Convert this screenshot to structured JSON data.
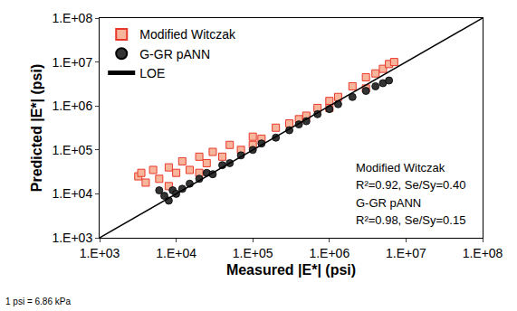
{
  "chart_data": {
    "type": "scatter",
    "xlabel": "Measured |E*| (psi)",
    "ylabel": "Predicted |E*| (psi)",
    "log": true,
    "grid": false,
    "legend": "top left",
    "xlim": [
      1000,
      100000000
    ],
    "ylim": [
      1000,
      100000000
    ],
    "xticks": [
      {
        "value": 1000,
        "label": "1.E+03"
      },
      {
        "value": 10000,
        "label": "1.E+04"
      },
      {
        "value": 100000,
        "label": "1.E+05"
      },
      {
        "value": 1000000,
        "label": "1.E+06"
      },
      {
        "value": 10000000,
        "label": "1.E+07"
      },
      {
        "value": 100000000,
        "label": "1.E+08"
      }
    ],
    "yticks": [
      {
        "value": 1000,
        "label": "1.E+03"
      },
      {
        "value": 10000,
        "label": "1.E+04"
      },
      {
        "value": 100000,
        "label": "1.E+05"
      },
      {
        "value": 1000000,
        "label": "1.E+06"
      },
      {
        "value": 10000000,
        "label": "1.E+07"
      },
      {
        "value": 100000000,
        "label": "1.E+08"
      }
    ],
    "annotations": [
      "Modified Witczak",
      "R²=0.92, Se/Sy=0.40",
      "G-GR pANN",
      "R²=0.98, Se/Sy=0.15"
    ],
    "footnote": "1 psi = 6.86 kPa",
    "series": [
      {
        "name": "Modified Witczak",
        "type": "scatter",
        "marker": "square",
        "color": "#e8382a",
        "x": [
          3200,
          3500,
          4000,
          5000,
          6000,
          8000,
          10000,
          12000,
          15000,
          20000,
          25000,
          30000,
          40000,
          50000,
          70000,
          100000,
          130000,
          200000,
          300000,
          400000,
          500000,
          700000,
          1000000,
          1300000,
          2000000,
          3000000,
          4000000,
          5000000,
          6000000,
          7000000,
          8000,
          20000,
          100000,
          1000000,
          3000000
        ],
        "values": [
          25000,
          30000,
          18000,
          35000,
          22000,
          40000,
          30000,
          55000,
          35000,
          70000,
          50000,
          90000,
          70000,
          130000,
          100000,
          200000,
          180000,
          320000,
          400000,
          500000,
          600000,
          900000,
          1300000,
          1600000,
          2800000,
          4500000,
          5500000,
          7000000,
          9000000,
          10000000,
          15000,
          30000,
          130000,
          900000,
          2500000
        ]
      },
      {
        "name": "G-GR pANN",
        "type": "scatter",
        "marker": "circle",
        "color": "#333333",
        "x": [
          6000,
          7000,
          8000,
          9000,
          10000,
          12000,
          15000,
          20000,
          25000,
          30000,
          40000,
          50000,
          70000,
          100000,
          130000,
          200000,
          300000,
          400000,
          500000,
          700000,
          1000000,
          1300000,
          2000000,
          3000000,
          4000000,
          5000000,
          6000000
        ],
        "values": [
          12000,
          9000,
          7000,
          12000,
          10000,
          13000,
          17000,
          22000,
          30000,
          28000,
          45000,
          50000,
          75000,
          100000,
          140000,
          190000,
          280000,
          380000,
          450000,
          650000,
          850000,
          1100000,
          1600000,
          2200000,
          2800000,
          3300000,
          3800000
        ]
      },
      {
        "name": "LOE",
        "type": "line",
        "line_style": "solid",
        "color": "#000000",
        "x": [
          1000,
          100000000
        ],
        "values": [
          1000,
          100000000
        ]
      }
    ]
  }
}
